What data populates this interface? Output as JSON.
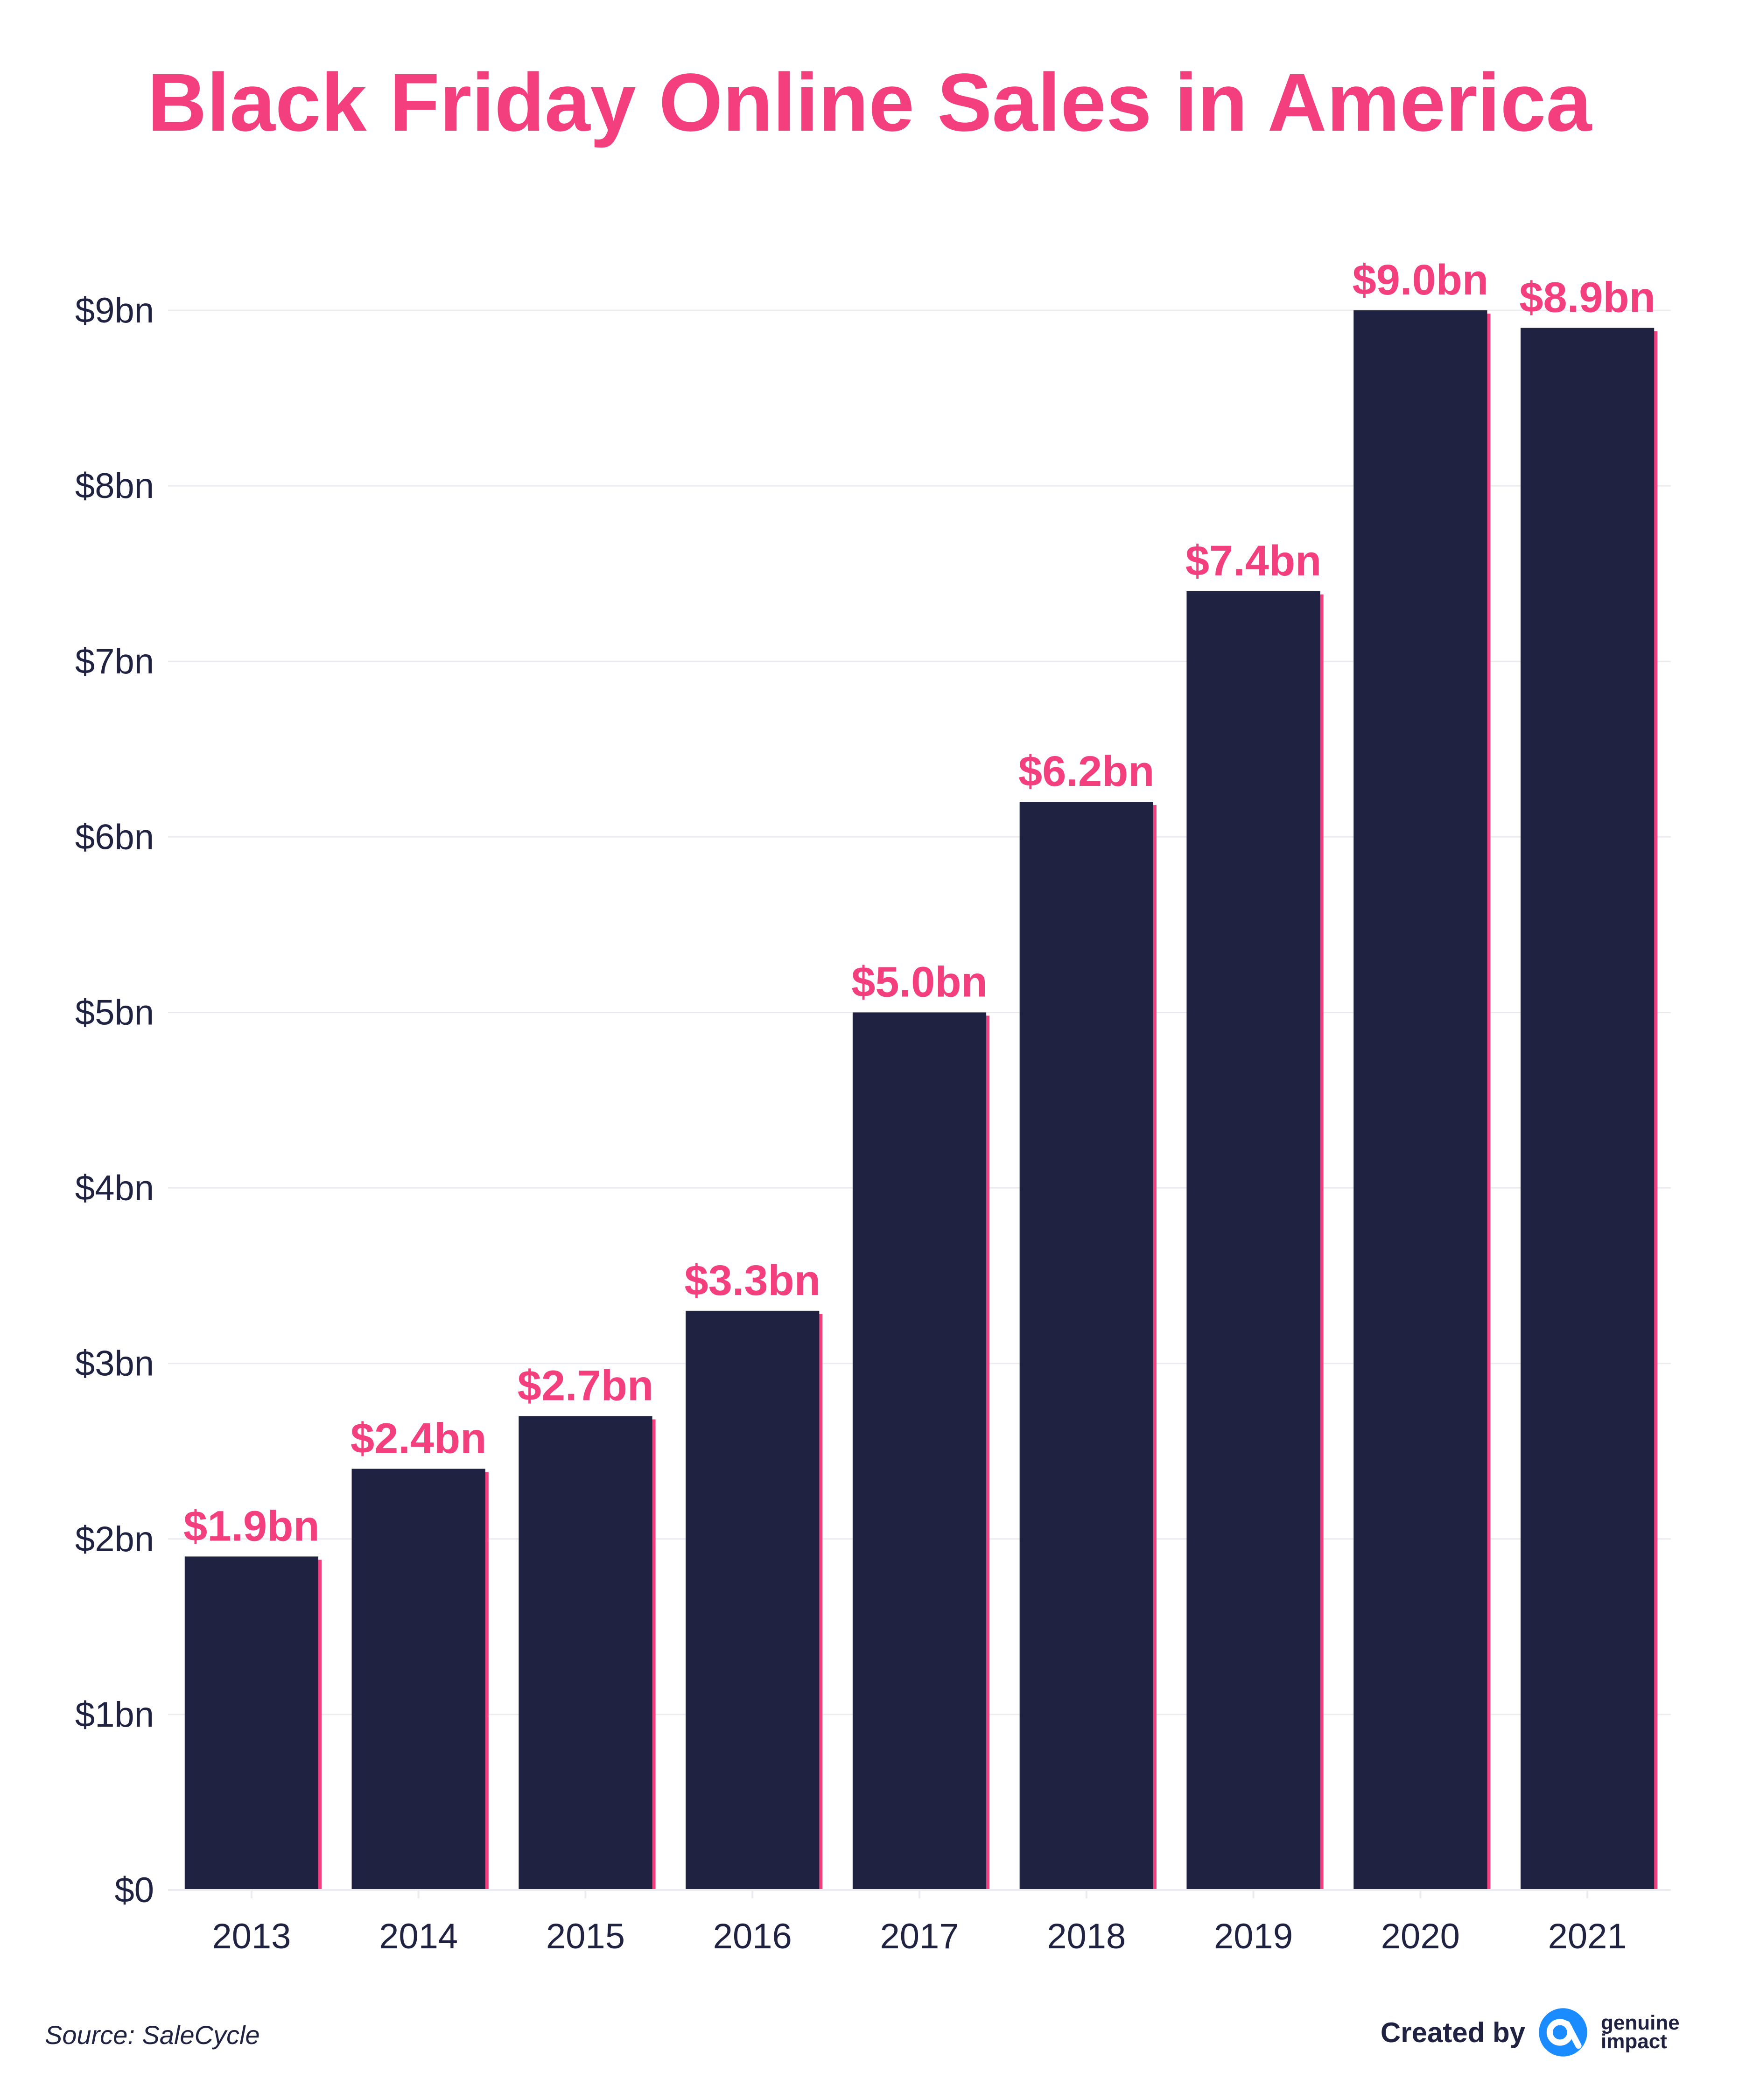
{
  "chart_data": {
    "type": "bar",
    "title": "Black Friday Online Sales in America",
    "xlabel": "",
    "ylabel": "",
    "categories": [
      "2013",
      "2014",
      "2015",
      "2016",
      "2017",
      "2018",
      "2019",
      "2020",
      "2021"
    ],
    "values": [
      1.9,
      2.4,
      2.7,
      3.3,
      5.0,
      6.2,
      7.4,
      9.0,
      8.9
    ],
    "data_labels": [
      "$1.9bn",
      "$2.4bn",
      "$2.7bn",
      "$3.3bn",
      "$5.0bn",
      "$6.2bn",
      "$7.4bn",
      "$9.0bn",
      "$8.9bn"
    ],
    "ylim": [
      0,
      9
    ],
    "yticks": [
      0,
      1,
      2,
      3,
      4,
      5,
      6,
      7,
      8,
      9
    ],
    "ytick_labels": [
      "$0",
      "$1bn",
      "$2bn",
      "$3bn",
      "$4bn",
      "$5bn",
      "$6bn",
      "$7bn",
      "$8bn",
      "$9bn"
    ],
    "grid": true,
    "colors": {
      "bar": "#1f2240",
      "bar_accent": "#f43f7f",
      "data_label": "#f43f7f",
      "title": "#f43f7f",
      "axis_text": "#1f2240",
      "grid": "#ececf0"
    }
  },
  "source": "Source: SaleCycle",
  "credit": {
    "label": "Created by",
    "brand": "genuine impact",
    "logo_icon": "genuine-impact-logo-icon"
  }
}
